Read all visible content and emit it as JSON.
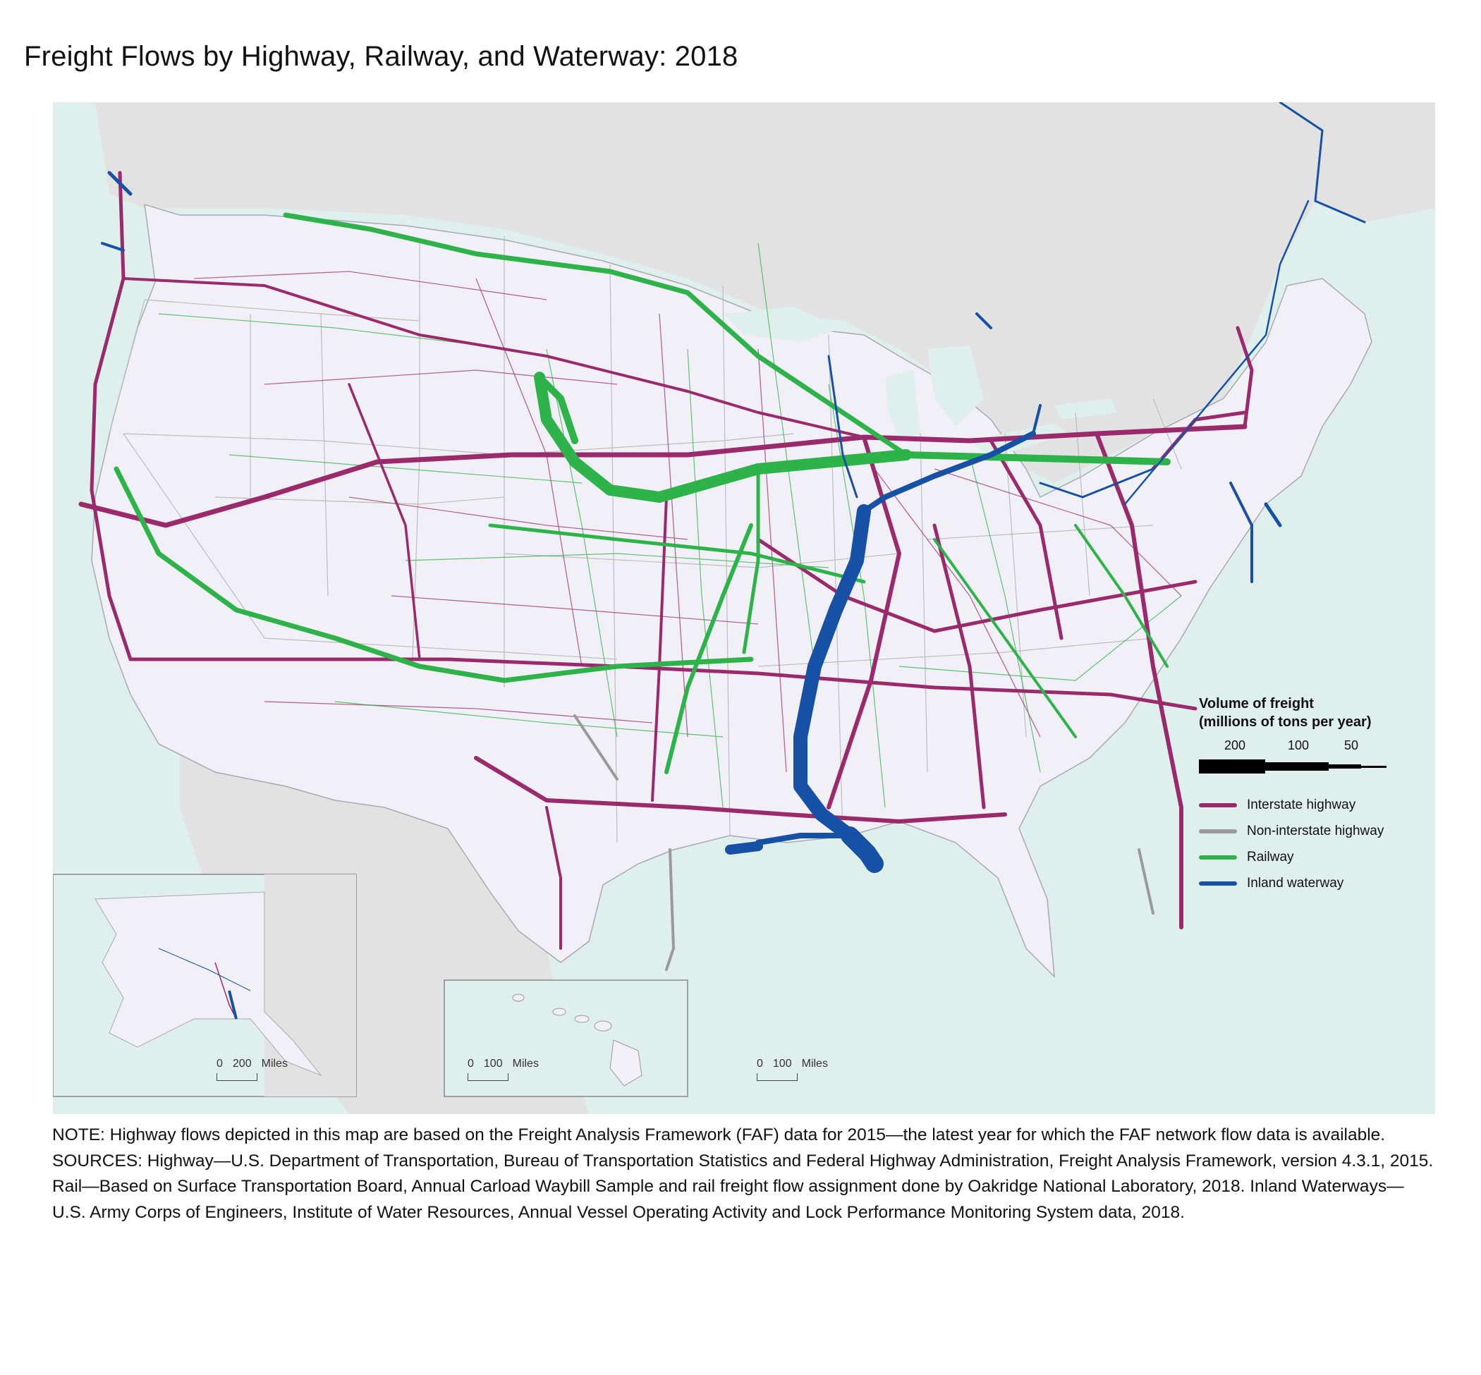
{
  "title": "Freight Flows by Highway, Railway, and Waterway: 2018",
  "legend": {
    "title_line1": "Volume of freight",
    "title_line2": "(millions of tons per year)",
    "scale_values": [
      "200",
      "100",
      "50"
    ],
    "items": [
      {
        "label": "Interstate highway",
        "color": "#9a2a6c"
      },
      {
        "label": "Non-interstate highway",
        "color": "#9a9a9a"
      },
      {
        "label": "Railway",
        "color": "#2eb34a"
      },
      {
        "label": "Inland waterway",
        "color": "#1651a6"
      }
    ]
  },
  "scalebars": {
    "alaska": {
      "zero": "0",
      "distance": "200",
      "unit": "Miles"
    },
    "hawaii": {
      "zero": "0",
      "distance": "100",
      "unit": "Miles"
    },
    "conus": {
      "zero": "0",
      "distance": "100",
      "unit": "Miles"
    }
  },
  "colors": {
    "water": "#dff0ec",
    "land_us": "#f1f0f6",
    "land_other": "#e2e2e2",
    "state_border": "#bcbcbc"
  },
  "notes": {
    "note": "NOTE: Highway flows depicted in this map are based on the Freight Analysis Framework (FAF) data for 2015—the latest year for which the FAF network flow data is available.",
    "sources": "SOURCES: Highway—U.S. Department of Transportation, Bureau of Transportation Statistics and Federal Highway Administration, Freight Analysis Framework, version 4.3.1, 2015. Rail—Based on Surface Transportation Board, Annual Carload Waybill Sample and rail freight flow assignment done by Oakridge National Laboratory, 2018. Inland Waterways—U.S. Army Corps of Engineers, Institute of Water Resources, Annual Vessel Operating Activity and Lock Performance Monitoring System data, 2018."
  }
}
